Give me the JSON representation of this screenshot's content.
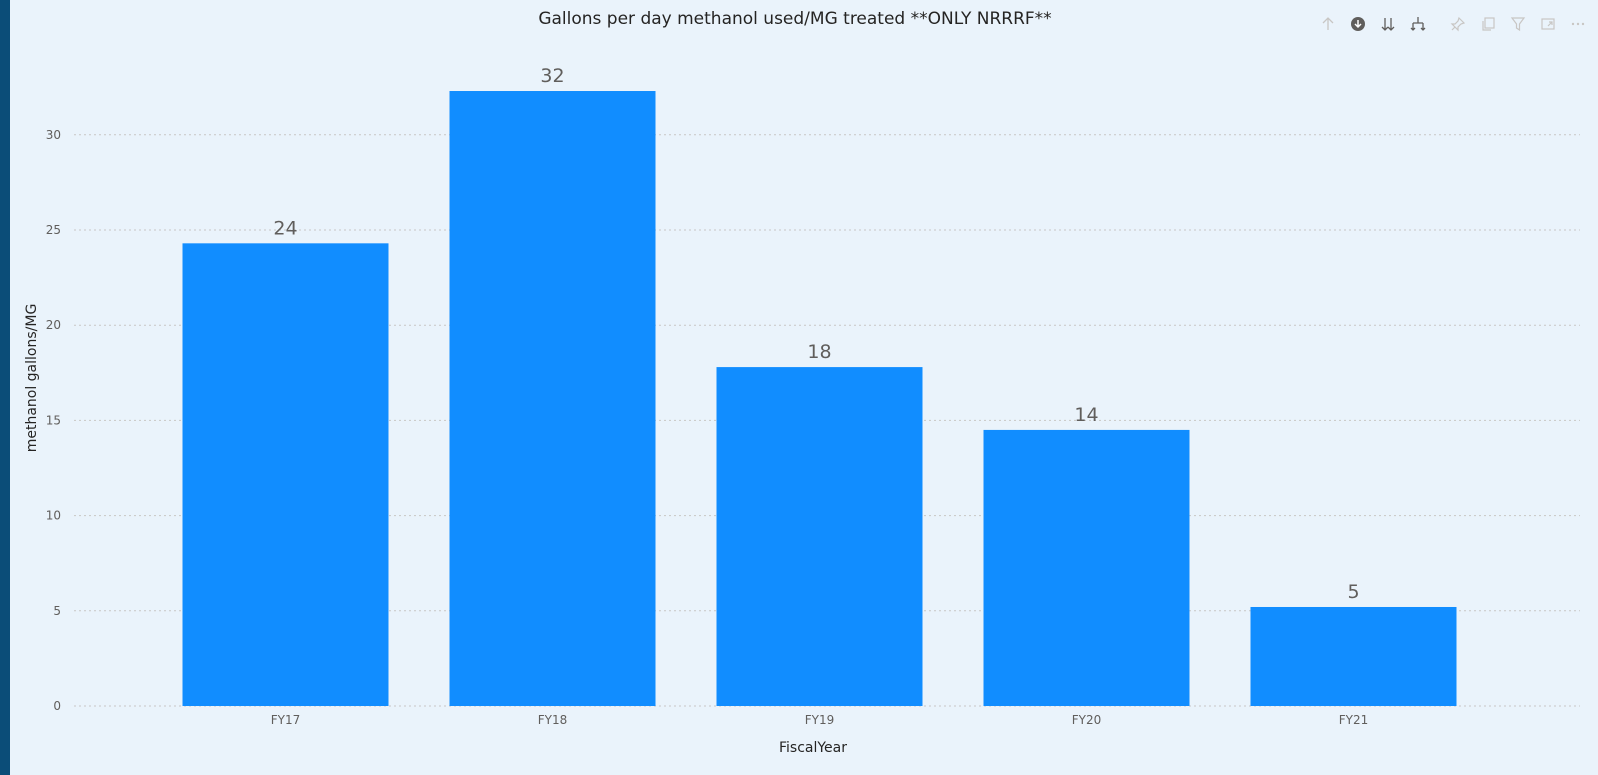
{
  "visual": {
    "title": "Gallons per day methanol used/MG treated **ONLY NRRRF**",
    "toolbar": [
      {
        "icon": "drill-up-icon",
        "name": "drill-up"
      },
      {
        "icon": "drill-down-toggle-icon",
        "name": "drill-down-toggle"
      },
      {
        "icon": "next-level-icon",
        "name": "go-to-next-level"
      },
      {
        "icon": "expand-hierarchy-icon",
        "name": "expand-next-level"
      },
      {
        "icon": "pin-icon",
        "name": "pin-visual"
      },
      {
        "icon": "copy-icon",
        "name": "copy-visual"
      },
      {
        "icon": "filter-icon",
        "name": "filter"
      },
      {
        "icon": "focus-mode-icon",
        "name": "focus-mode"
      },
      {
        "icon": "more-options-icon",
        "name": "more-options"
      }
    ]
  },
  "chart_data": {
    "type": "bar",
    "title": "Gallons per day methanol used/MG treated **ONLY NRRRF**",
    "categories": [
      "FY17",
      "FY18",
      "FY19",
      "FY20",
      "FY21"
    ],
    "values": [
      24.3,
      32.3,
      17.8,
      14.5,
      5.2
    ],
    "data_labels": [
      "24",
      "32",
      "18",
      "14",
      "5"
    ],
    "xlabel": "FiscalYear",
    "ylabel": "methanol gallons/MG",
    "ylim": [
      0,
      34
    ],
    "yticks": [
      0,
      5,
      10,
      15,
      20,
      25,
      30
    ],
    "grid": true,
    "bar_color": "#118dff"
  }
}
